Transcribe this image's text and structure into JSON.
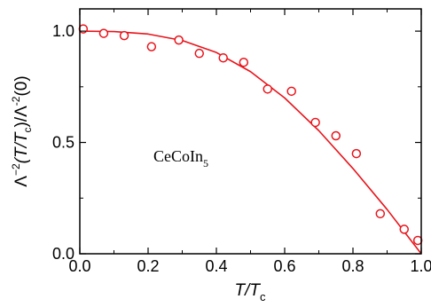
{
  "chart_data": {
    "type": "scatter",
    "xlim": [
      0.0,
      1.0
    ],
    "ylim": [
      0.0,
      1.1
    ],
    "x_ticks": [
      0.0,
      0.2,
      0.4,
      0.6,
      0.8,
      1.0
    ],
    "x_tick_labels": [
      "0.0",
      "0.2",
      "0.4",
      "0.6",
      "0.8",
      "1.0"
    ],
    "y_ticks": [
      0.0,
      0.5,
      1.0
    ],
    "y_tick_labels": [
      "0.0",
      "0.5",
      "1.0"
    ],
    "xlabel": {
      "main": "T/T",
      "sub": "c"
    },
    "ylabel": {
      "p1": "Λ",
      "sup1": "−2",
      "p2": "(T/T",
      "sub": "c",
      "p3": ")/Λ",
      "sup2": "-2",
      "p4": "(0)"
    },
    "annotation": {
      "main": "CeCoIn",
      "sub": "5"
    },
    "grid": false,
    "color": "#e8141b",
    "series": [
      {
        "kind": "markers",
        "marker": "open-circle",
        "x": [
          0.01,
          0.07,
          0.13,
          0.21,
          0.29,
          0.35,
          0.42,
          0.48,
          0.55,
          0.62,
          0.69,
          0.75,
          0.81,
          0.88,
          0.95,
          0.99
        ],
        "y": [
          1.01,
          0.99,
          0.98,
          0.93,
          0.96,
          0.9,
          0.88,
          0.86,
          0.74,
          0.73,
          0.59,
          0.53,
          0.45,
          0.18,
          0.11,
          0.06
        ]
      },
      {
        "kind": "line",
        "x": [
          0.0,
          0.1,
          0.2,
          0.3,
          0.4,
          0.5,
          0.6,
          0.7,
          0.8,
          0.9,
          1.0
        ],
        "y": [
          1.0,
          0.998,
          0.987,
          0.958,
          0.904,
          0.818,
          0.7,
          0.553,
          0.383,
          0.199,
          0.0
        ]
      }
    ]
  }
}
